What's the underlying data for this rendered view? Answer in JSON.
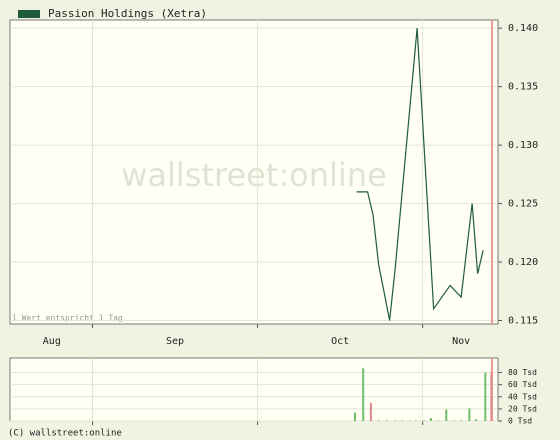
{
  "chart_data": [
    {
      "type": "line",
      "legend": "Passion Holdings (Xetra)",
      "watermark": "wallstreet:online",
      "note": "1 Wert entspricht 1 Tag",
      "xlim": [
        0,
        88.7
      ],
      "xticks": [
        {
          "value": 7.6,
          "label": "Aug"
        },
        {
          "value": 30,
          "label": "Sep"
        },
        {
          "value": 60,
          "label": "Oct"
        },
        {
          "value": 82,
          "label": "Nov"
        }
      ],
      "xgrid": [
        15,
        45,
        75
      ],
      "ylim": [
        0.1147,
        0.1407
      ],
      "yticks": [
        0.115,
        {
          "value": 0.12,
          "label": "0.120"
        },
        0.125,
        {
          "value": 0.13,
          "label": "0.130"
        },
        0.135,
        {
          "value": 0.14,
          "label": "0.140"
        }
      ],
      "grid": true,
      "highlight_x": 87.6,
      "highlight_color": "#e89a9a",
      "series": [
        {
          "name": "Passion Holdings (Xetra)",
          "color": "#1f5c3c",
          "x": [
            63,
            65,
            66,
            67,
            69,
            70,
            74,
            77,
            80,
            82,
            84,
            85,
            86
          ],
          "values": [
            0.126,
            0.126,
            0.124,
            0.1198,
            0.115,
            0.1194,
            0.14,
            0.116,
            0.118,
            0.117,
            0.125,
            0.119,
            0.121
          ]
        }
      ]
    },
    {
      "type": "bar",
      "xlim": [
        0,
        88.7
      ],
      "xgrid": [
        15,
        45,
        75
      ],
      "ylim": [
        0,
        104
      ],
      "yticks": [
        {
          "value": 0,
          "label": "0 Tsd"
        },
        {
          "value": 20,
          "label": "20 Tsd"
        },
        {
          "value": 40,
          "label": "40 Tsd"
        },
        {
          "value": 60,
          "label": "60 Tsd"
        },
        {
          "value": 80,
          "label": "80 Tsd"
        }
      ],
      "grid": true,
      "highlight_x": 87.6,
      "highlight_color": "#e89a9a",
      "x": [
        62.7,
        64.2,
        65.6,
        67,
        68.5,
        70,
        71.3,
        72.7,
        73.8,
        75.3,
        76.5,
        77.8,
        79.3,
        80.7,
        82,
        83.5,
        84.7,
        86.4,
        87.5
      ],
      "values": [
        14,
        87,
        30,
        1,
        1,
        1,
        1,
        1,
        1,
        1,
        5,
        1,
        19,
        1,
        1,
        21,
        3,
        80,
        80
      ],
      "colors": [
        "#6cc06c",
        "#6cc06c",
        "#e08888",
        "#6cc06c",
        "#6cc06c",
        "#6cc06c",
        "#6cc06c",
        "#6cc06c",
        "#6cc06c",
        "#6cc06c",
        "#6cc06c",
        "#6cc06c",
        "#6cc06c",
        "#6cc06c",
        "#6cc06c",
        "#6cc06c",
        "#6cc06c",
        "#6cc06c",
        "#e08888"
      ]
    }
  ],
  "footer": "(C) wallstreet:online"
}
